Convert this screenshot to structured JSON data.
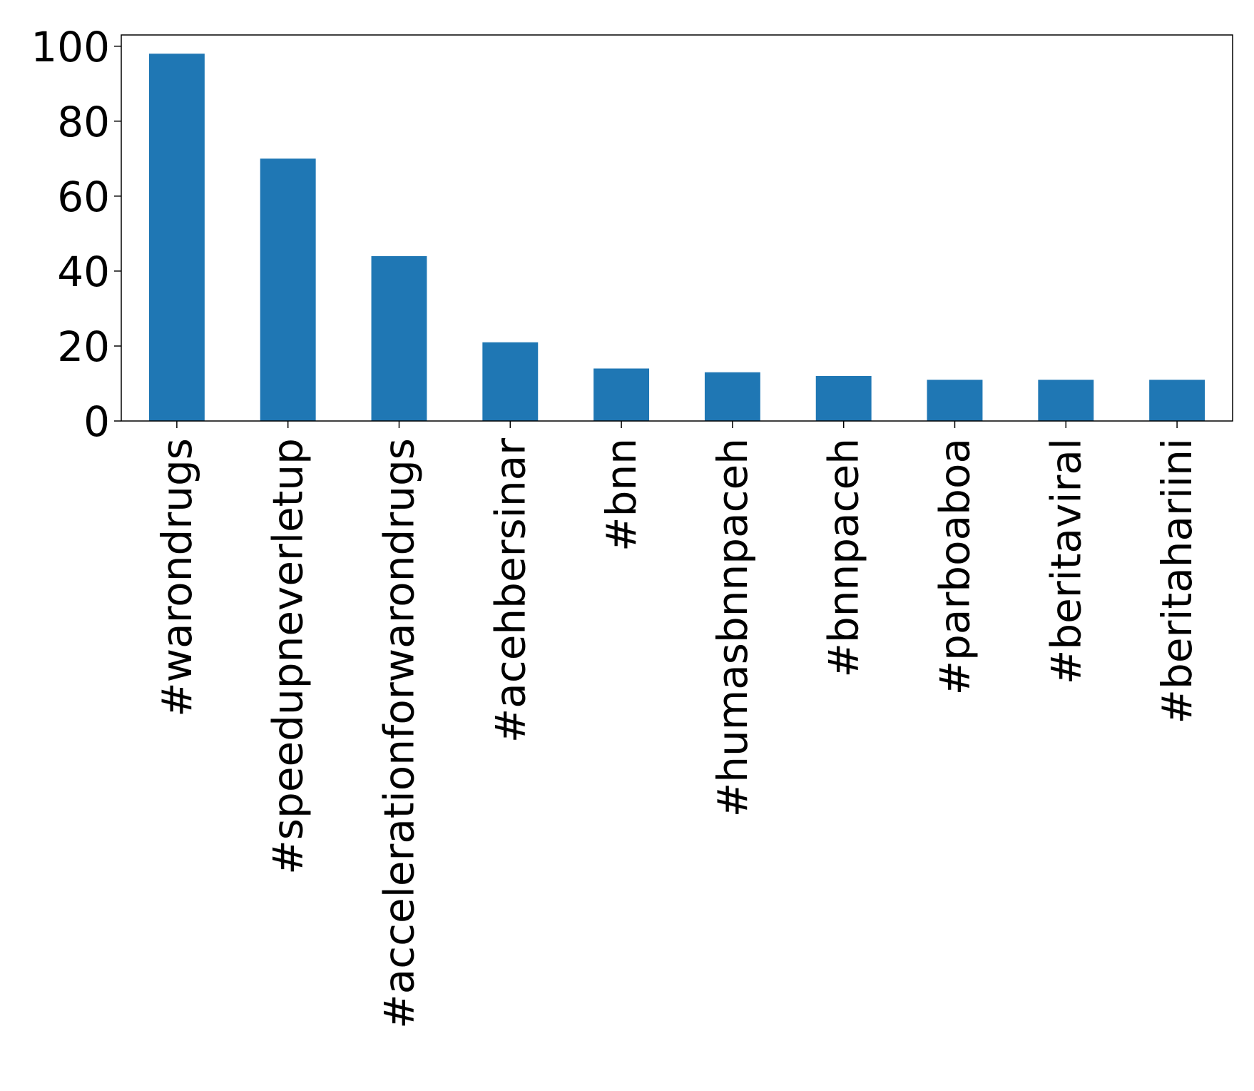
{
  "chart_data": {
    "type": "bar",
    "title": "",
    "xlabel": "",
    "ylabel": "",
    "categories": [
      "#warondrugs",
      "#speedupneverletup",
      "#accelerationforwarondrugs",
      "#acehbersinar",
      "#bnn",
      "#humasbnnpaceh",
      "#bnnpaceh",
      "#parboaboa",
      "#beritaviral",
      "#beritahariini"
    ],
    "values": [
      98,
      70,
      44,
      21,
      14,
      13,
      12,
      11,
      11,
      11
    ],
    "ylim": [
      0,
      103
    ],
    "yticks": [
      0,
      20,
      40,
      60,
      80,
      100
    ],
    "grid": false,
    "legend": "none",
    "bar_color": "#1f77b4"
  }
}
